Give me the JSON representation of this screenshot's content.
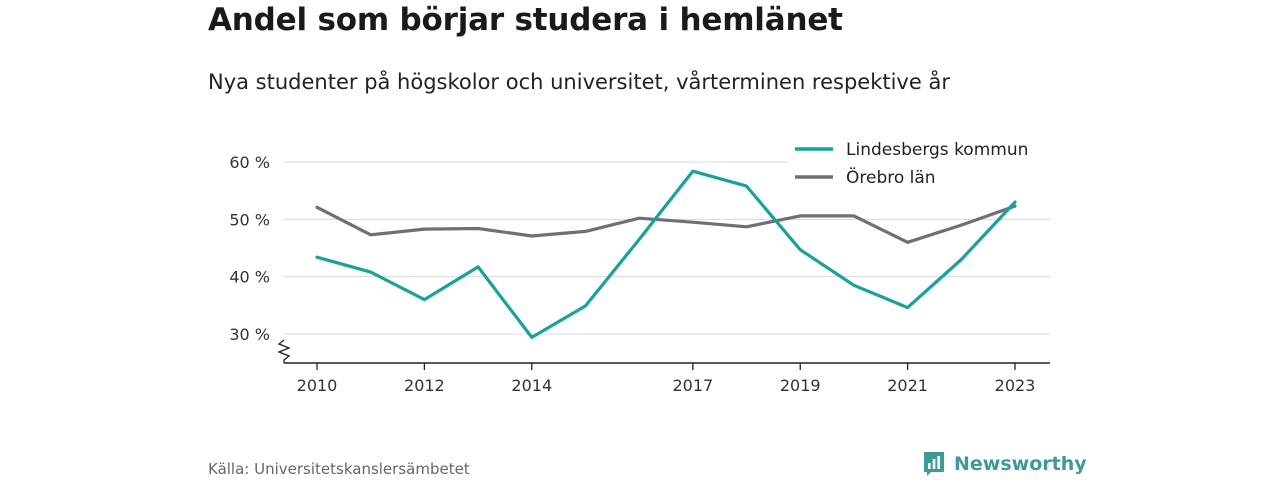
{
  "header": {
    "title": "Andel som börjar studera i hemlänet",
    "subtitle": "Nya studenter på högskolor och universitet, vårterminen respektive år"
  },
  "footer": {
    "source": "Källa: Universitetskanslersämbetet",
    "brand": "Newsworthy"
  },
  "colors": {
    "lindesberg": "#17a398",
    "orebro": "#6f6f74",
    "grid": "#d9d9d9",
    "brand": "#3d9a96"
  },
  "chart_data": {
    "type": "line",
    "x": [
      2010,
      2011,
      2012,
      2013,
      2014,
      2015,
      2016,
      2017,
      2018,
      2019,
      2020,
      2021,
      2022,
      2023
    ],
    "series": [
      {
        "name": "Lindesbergs kommun",
        "color": "#17a398",
        "values": [
          43.4,
          40.8,
          36.0,
          41.7,
          29.4,
          34.9,
          46.5,
          58.4,
          55.8,
          44.7,
          38.5,
          34.6,
          43.0,
          53.0
        ]
      },
      {
        "name": "Örebro län",
        "color": "#6f6f74",
        "values": [
          52.1,
          47.3,
          48.3,
          48.4,
          47.1,
          47.9,
          50.2,
          49.5,
          48.7,
          50.6,
          50.6,
          46.0,
          49.0,
          52.3
        ]
      }
    ],
    "yticks": [
      30,
      40,
      50,
      60
    ],
    "ytick_labels": [
      "30 %",
      "40 %",
      "50 %",
      "60 %"
    ],
    "xticks": [
      2010,
      2012,
      2014,
      2017,
      2019,
      2021,
      2023
    ],
    "ylim": [
      25,
      62
    ],
    "y_axis_break": true,
    "grid": true,
    "legend_position": "top-right"
  }
}
